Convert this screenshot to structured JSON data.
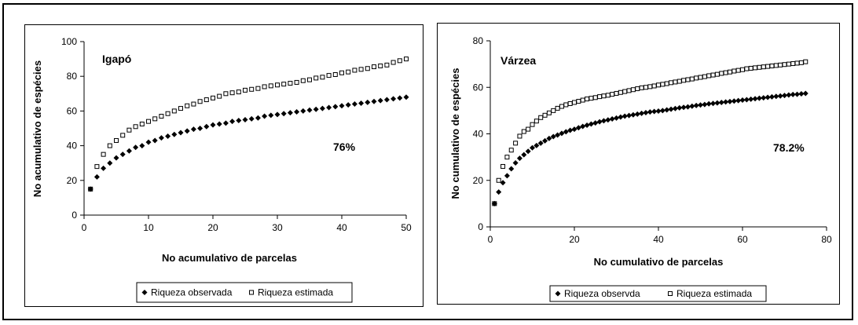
{
  "chart_data": [
    {
      "type": "scatter",
      "panel_label": "Igapó",
      "annotation": "76%",
      "xlabel": "No acumulativo de parcelas",
      "ylabel": "No acumulativo de espécies",
      "xlim": [
        0,
        50
      ],
      "ylim": [
        0,
        100
      ],
      "xticks": [
        0,
        10,
        20,
        30,
        40,
        50
      ],
      "yticks": [
        0,
        20,
        40,
        60,
        80,
        100
      ],
      "legend_position": "bottom-center",
      "series": [
        {
          "name": "Riqueza observada",
          "marker": "filled-diamond",
          "color": "#000000",
          "x": [
            1,
            2,
            3,
            4,
            5,
            6,
            7,
            8,
            9,
            10,
            11,
            12,
            13,
            14,
            15,
            16,
            17,
            18,
            19,
            20,
            21,
            22,
            23,
            24,
            25,
            26,
            27,
            28,
            29,
            30,
            31,
            32,
            33,
            34,
            35,
            36,
            37,
            38,
            39,
            40,
            41,
            42,
            43,
            44,
            45,
            46,
            47,
            48,
            49,
            50
          ],
          "y": [
            15,
            22,
            27,
            30,
            33,
            35,
            37,
            39,
            40,
            42,
            43,
            44.5,
            45.5,
            46.5,
            47.5,
            48.5,
            49.5,
            50,
            51,
            52,
            52.5,
            53,
            54,
            54.5,
            55,
            55.5,
            56,
            57,
            57.5,
            58,
            58.5,
            59,
            59.5,
            60,
            60.5,
            61,
            61.5,
            62,
            62.5,
            63,
            63.5,
            64,
            64.5,
            65,
            65.5,
            66,
            66.5,
            67,
            67.5,
            68
          ]
        },
        {
          "name": "Riqueza estimada",
          "marker": "open-square",
          "color": "#000000",
          "x": [
            1,
            2,
            3,
            4,
            5,
            6,
            7,
            8,
            9,
            10,
            11,
            12,
            13,
            14,
            15,
            16,
            17,
            18,
            19,
            20,
            21,
            22,
            23,
            24,
            25,
            26,
            27,
            28,
            29,
            30,
            31,
            32,
            33,
            34,
            35,
            36,
            37,
            38,
            39,
            40,
            41,
            42,
            43,
            44,
            45,
            46,
            47,
            48,
            49,
            50
          ],
          "y": [
            15,
            28,
            35,
            40,
            43,
            46,
            49,
            51,
            52.5,
            54,
            55.5,
            57,
            58.5,
            60,
            61.5,
            63,
            64,
            65.5,
            66.5,
            67.5,
            68.5,
            70,
            70.5,
            71,
            72,
            72.5,
            73,
            74,
            74.5,
            75,
            75.5,
            76,
            76.5,
            77.5,
            78,
            79,
            79.5,
            80.5,
            81,
            82,
            82.5,
            83.5,
            84,
            84.5,
            85.5,
            86,
            86.5,
            88,
            89,
            90
          ]
        }
      ]
    },
    {
      "type": "scatter",
      "panel_label": "Várzea",
      "annotation": "78.2%",
      "xlabel": "No cumulativo de parcelas",
      "ylabel": "No cumulativo de espécies",
      "xlim": [
        0,
        80
      ],
      "ylim": [
        0,
        80
      ],
      "xticks": [
        0,
        20,
        40,
        60,
        80
      ],
      "yticks": [
        0,
        20,
        40,
        60,
        80
      ],
      "legend_position": "bottom-center",
      "series": [
        {
          "name": "Riqueza observda",
          "marker": "filled-diamond",
          "color": "#000000",
          "x": [
            1,
            2,
            3,
            4,
            5,
            6,
            7,
            8,
            9,
            10,
            11,
            12,
            13,
            14,
            15,
            16,
            17,
            18,
            19,
            20,
            21,
            22,
            23,
            24,
            25,
            26,
            27,
            28,
            29,
            30,
            31,
            32,
            33,
            34,
            35,
            36,
            37,
            38,
            39,
            40,
            41,
            42,
            43,
            44,
            45,
            46,
            47,
            48,
            49,
            50,
            51,
            52,
            53,
            54,
            55,
            56,
            57,
            58,
            59,
            60,
            61,
            62,
            63,
            64,
            65,
            66,
            67,
            68,
            69,
            70,
            71,
            72,
            73,
            74,
            75
          ],
          "y": [
            10,
            15,
            19,
            22,
            25,
            27.5,
            29.5,
            31,
            32.5,
            34,
            35,
            36,
            37,
            38,
            38.8,
            39.5,
            40.2,
            40.9,
            41.5,
            42,
            42.6,
            43.2,
            43.7,
            44.2,
            44.7,
            45.2,
            45.6,
            46,
            46.4,
            46.8,
            47.2,
            47.6,
            47.9,
            48.2,
            48.5,
            48.8,
            49.1,
            49.4,
            49.6,
            49.8,
            50,
            50.3,
            50.6,
            50.9,
            51.2,
            51.4,
            51.6,
            51.9,
            52.2,
            52.4,
            52.6,
            52.9,
            53.1,
            53.3,
            53.5,
            53.7,
            53.9,
            54.1,
            54.3,
            54.5,
            54.7,
            54.9,
            55.1,
            55.3,
            55.5,
            55.7,
            55.9,
            56.1,
            56.3,
            56.5,
            56.7,
            56.9,
            57,
            57.2,
            57.4
          ]
        },
        {
          "name": "Riqueza estimada",
          "marker": "open-square",
          "color": "#000000",
          "x": [
            1,
            2,
            3,
            4,
            5,
            6,
            7,
            8,
            9,
            10,
            11,
            12,
            13,
            14,
            15,
            16,
            17,
            18,
            19,
            20,
            21,
            22,
            23,
            24,
            25,
            26,
            27,
            28,
            29,
            30,
            31,
            32,
            33,
            34,
            35,
            36,
            37,
            38,
            39,
            40,
            41,
            42,
            43,
            44,
            45,
            46,
            47,
            48,
            49,
            50,
            51,
            52,
            53,
            54,
            55,
            56,
            57,
            58,
            59,
            60,
            61,
            62,
            63,
            64,
            65,
            66,
            67,
            68,
            69,
            70,
            71,
            72,
            73,
            74,
            75
          ],
          "y": [
            10,
            20,
            26,
            30,
            33,
            36,
            39,
            41,
            42,
            44,
            45.5,
            47,
            48,
            49,
            50,
            51,
            51.8,
            52.5,
            53,
            53.5,
            54,
            54.5,
            55,
            55.3,
            55.6,
            56,
            56.3,
            56.6,
            57,
            57.4,
            57.8,
            58.2,
            58.6,
            59,
            59.4,
            59.8,
            60,
            60.3,
            60.6,
            61,
            61.3,
            61.6,
            62,
            62.3,
            62.6,
            63,
            63.3,
            63.6,
            64,
            64.3,
            64.6,
            65,
            65.3,
            65.6,
            66,
            66.3,
            66.6,
            67,
            67.3,
            67.6,
            68,
            68.2,
            68.4,
            68.6,
            68.8,
            69,
            69.2,
            69.4,
            69.6,
            69.8,
            70,
            70.2,
            70.4,
            70.6,
            71
          ]
        }
      ]
    }
  ]
}
